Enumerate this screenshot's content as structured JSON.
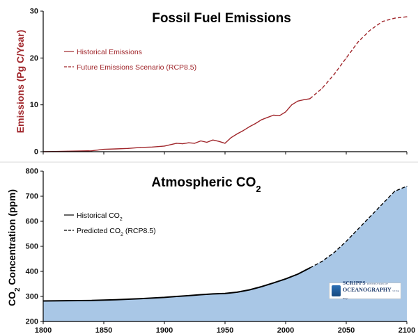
{
  "chart_data": [
    {
      "type": "line",
      "title": "Fossil Fuel Emissions",
      "ylabel": "Emissions (Pg C/Year)",
      "xlabel": "",
      "xlim": [
        1800,
        2100
      ],
      "ylim": [
        0,
        30
      ],
      "y_ticks": [
        "0",
        "10",
        "20",
        "30"
      ],
      "grid": false,
      "legend_position": "top-left",
      "series": [
        {
          "name": "Historical Emissions",
          "style": "solid",
          "color": "#a0262b",
          "x": [
            1800,
            1820,
            1840,
            1850,
            1860,
            1870,
            1880,
            1890,
            1900,
            1910,
            1915,
            1920,
            1925,
            1930,
            1935,
            1940,
            1945,
            1950,
            1955,
            1960,
            1965,
            1970,
            1975,
            1980,
            1985,
            1990,
            1995,
            2000,
            2005,
            2010,
            2015,
            2020
          ],
          "values": [
            0.0,
            0.1,
            0.2,
            0.5,
            0.6,
            0.7,
            0.9,
            1.0,
            1.2,
            1.8,
            1.7,
            1.9,
            1.8,
            2.3,
            2.0,
            2.5,
            2.2,
            1.8,
            3.0,
            3.8,
            4.5,
            5.3,
            6.0,
            6.8,
            7.3,
            7.8,
            7.7,
            8.5,
            10.0,
            10.8,
            11.1,
            11.3
          ]
        },
        {
          "name": "Future Emissions Scenario (RCP8.5)",
          "style": "dashed",
          "color": "#a0262b",
          "x": [
            2020,
            2030,
            2040,
            2050,
            2060,
            2070,
            2080,
            2090,
            2100
          ],
          "values": [
            11.3,
            13.5,
            16.5,
            20.0,
            23.5,
            26.0,
            27.8,
            28.5,
            28.8
          ]
        }
      ]
    },
    {
      "type": "area",
      "title": "Atmospheric CO2",
      "ylabel": "CO2 Concentration (ppm)",
      "xlabel": "",
      "xlim": [
        1800,
        2100
      ],
      "ylim": [
        200,
        800
      ],
      "x_ticks": [
        "1800",
        "1850",
        "1900",
        "1950",
        "2000",
        "2050",
        "2100"
      ],
      "y_ticks": [
        "200",
        "300",
        "400",
        "500",
        "600",
        "700",
        "800"
      ],
      "grid": false,
      "legend_position": "top-left",
      "fill_color": "#a9c7e6",
      "series": [
        {
          "name": "Historical CO2",
          "style": "solid",
          "color": "#000000",
          "x": [
            1800,
            1820,
            1840,
            1860,
            1880,
            1900,
            1910,
            1920,
            1930,
            1940,
            1950,
            1960,
            1970,
            1980,
            1990,
            2000,
            2010,
            2020
          ],
          "values": [
            282,
            283,
            284,
            287,
            291,
            296,
            300,
            303,
            307,
            310,
            312,
            317,
            326,
            339,
            354,
            370,
            389,
            414
          ]
        },
        {
          "name": "Predicted CO2 (RCP8.5)",
          "style": "dashed",
          "color": "#000000",
          "x": [
            2020,
            2030,
            2040,
            2050,
            2060,
            2070,
            2080,
            2090,
            2100
          ],
          "values": [
            414,
            440,
            475,
            520,
            570,
            620,
            670,
            720,
            740
          ]
        }
      ]
    }
  ],
  "logo": {
    "line1": "SCRIPPS",
    "line1_small": "INSTITUTION OF",
    "line2": "OCEANOGRAPHY",
    "line2_small": "UC San Diego"
  }
}
